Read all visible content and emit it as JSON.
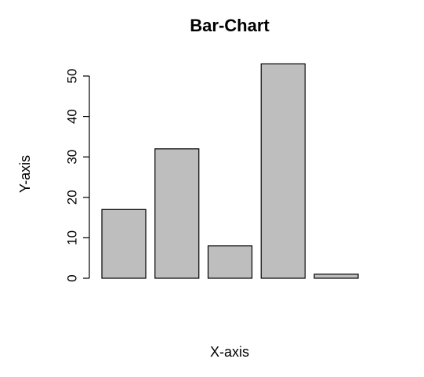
{
  "chart_data": {
    "type": "bar",
    "title": "Bar-Chart",
    "xlabel": "X-axis",
    "ylabel": "Y-axis",
    "categories": [
      "",
      "",
      "",
      "",
      ""
    ],
    "values": [
      17,
      32,
      8,
      53,
      1
    ],
    "ylim": [
      0,
      55
    ],
    "yticks": [
      0,
      10,
      20,
      30,
      40,
      50
    ],
    "bar_color": "#bebebe",
    "grid": false
  }
}
